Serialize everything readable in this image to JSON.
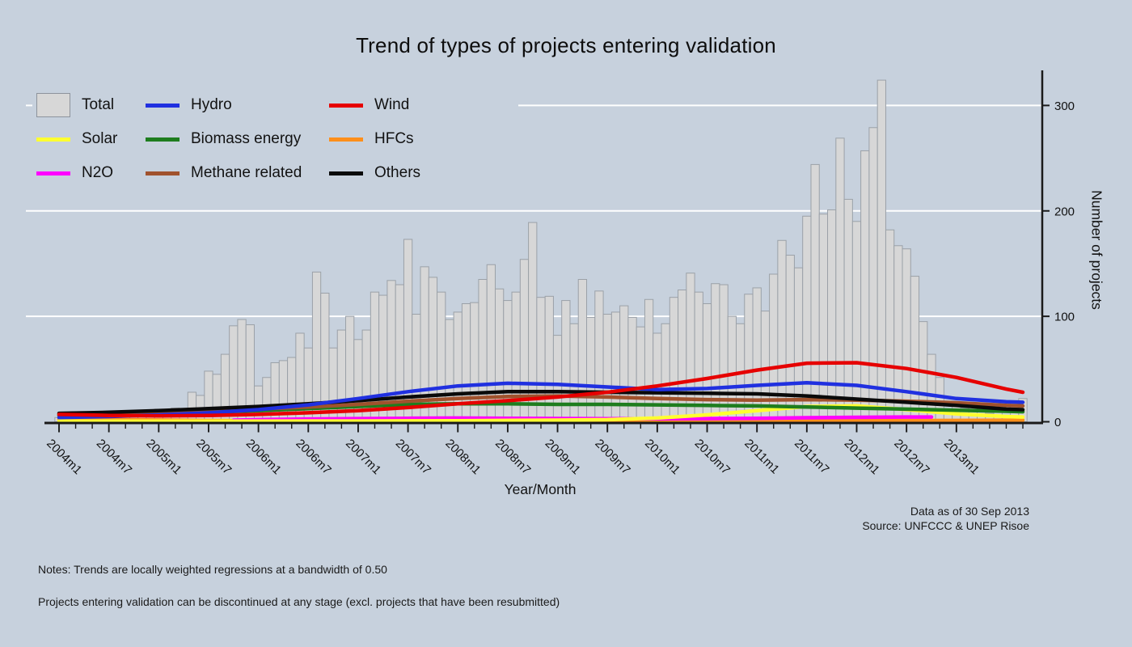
{
  "title": "Trend of types of projects entering validation",
  "background_color": "#c7d1dd",
  "legend": {
    "items": [
      {
        "label": "Total",
        "swatch": "patch",
        "color": "#d7d7d7",
        "border": "#8d939c"
      },
      {
        "label": "Hydro",
        "swatch": "line",
        "color": "#2030e0"
      },
      {
        "label": "Wind",
        "swatch": "line",
        "color": "#e60000"
      },
      {
        "label": "Solar",
        "swatch": "line",
        "color": "#ffff30"
      },
      {
        "label": "Biomass energy",
        "swatch": "line",
        "color": "#1e7d1e"
      },
      {
        "label": "HFCs",
        "swatch": "line",
        "color": "#ff8f1a"
      },
      {
        "label": "N2O",
        "swatch": "line",
        "color": "#ff00ff"
      },
      {
        "label": "Methane related",
        "swatch": "line",
        "color": "#a0522d"
      },
      {
        "label": "Others",
        "swatch": "line",
        "color": "#0a0a0a"
      }
    ]
  },
  "annotations": {
    "data_as_of": "Data as of 30 Sep 2013",
    "source": "Source: UNFCCC & UNEP Risoe"
  },
  "notes": [
    "Notes: Trends are locally weighted regressions at a bandwidth of 0.50",
    "Projects entering validation can be discontinued at any stage (excl. projects that have been resubmitted)"
  ],
  "chart_data": {
    "type": "bar",
    "title": "Trend of types of projects entering validation",
    "xlabel": "Year/Month",
    "ylabel": "Number of projects",
    "x_start": "2004m1",
    "x_end": "2013m9",
    "x_frequency": "monthly",
    "x_tick_labels": [
      "2004m1",
      "2004m7",
      "2005m1",
      "2005m7",
      "2006m1",
      "2006m7",
      "2007m1",
      "2007m7",
      "2008m1",
      "2008m7",
      "2009m1",
      "2009m7",
      "2010m1",
      "2010m7",
      "2011m1",
      "2011m7",
      "2012m1",
      "2012m7",
      "2013m1"
    ],
    "minor_tick_every_months": 2,
    "y_ticks": [
      0,
      100,
      200,
      300
    ],
    "y_tick_labels": [
      "0",
      "100",
      "200",
      "300"
    ],
    "ylim": [
      0,
      332
    ],
    "grid": "horizontal-white-lines",
    "legend_position": "top-left-inside",
    "total": {
      "name": "Total",
      "color": "#d7d7d7",
      "border": "#9ba1a8",
      "values": [
        4,
        5,
        3,
        5,
        4,
        5,
        7,
        6,
        8,
        10,
        9,
        10,
        12,
        9,
        13,
        11,
        28,
        25,
        48,
        45,
        64,
        91,
        97,
        92,
        34,
        42,
        56,
        58,
        61,
        84,
        70,
        142,
        122,
        70,
        87,
        100,
        78,
        87,
        123,
        120,
        134,
        130,
        173,
        102,
        147,
        137,
        123,
        97,
        104,
        112,
        113,
        135,
        149,
        126,
        115,
        123,
        154,
        189,
        118,
        119,
        82,
        115,
        93,
        135,
        99,
        124,
        102,
        104,
        110,
        99,
        90,
        116,
        84,
        93,
        118,
        125,
        141,
        123,
        112,
        131,
        130,
        100,
        93,
        121,
        127,
        105,
        140,
        172,
        158,
        146,
        195,
        244,
        197,
        201,
        269,
        211,
        190,
        257,
        279,
        324,
        182,
        167,
        164,
        138,
        95,
        64,
        42,
        11,
        17,
        13,
        17,
        13,
        8,
        17,
        5,
        20,
        22
      ]
    },
    "trend_series": [
      {
        "id": "hfcs",
        "name": "HFCs",
        "color": "#ff8f1a",
        "points": [
          [
            0,
            2
          ],
          [
            6,
            2
          ],
          [
            12,
            1.6
          ],
          [
            18,
            1.2
          ],
          [
            24,
            1
          ],
          [
            30,
            0.9
          ],
          [
            36,
            0.8
          ],
          [
            48,
            0.8
          ],
          [
            60,
            0.8
          ],
          [
            72,
            0.9
          ],
          [
            84,
            1
          ],
          [
            96,
            1
          ],
          [
            108,
            1.2
          ],
          [
            116,
            1.5
          ]
        ]
      },
      {
        "id": "n2o",
        "name": "N2O",
        "color": "#ff00ff",
        "points": [
          [
            21,
            1.5
          ],
          [
            24,
            2
          ],
          [
            30,
            2.6
          ],
          [
            36,
            3
          ],
          [
            42,
            3.3
          ],
          [
            48,
            3.5
          ],
          [
            54,
            3.3
          ],
          [
            60,
            3.1
          ],
          [
            66,
            2.9
          ],
          [
            72,
            2.9
          ],
          [
            78,
            3
          ],
          [
            84,
            3.3
          ],
          [
            90,
            3.8
          ],
          [
            96,
            4.2
          ],
          [
            102,
            4.5
          ],
          [
            105,
            4.5
          ]
        ]
      },
      {
        "id": "solar",
        "name": "Solar",
        "color": "#ffff30",
        "points": [
          [
            0,
            0.6
          ],
          [
            12,
            0.6
          ],
          [
            24,
            0.6
          ],
          [
            36,
            0.7
          ],
          [
            48,
            1
          ],
          [
            60,
            1.5
          ],
          [
            66,
            2
          ],
          [
            72,
            3.5
          ],
          [
            78,
            6.5
          ],
          [
            84,
            10.5
          ],
          [
            90,
            14.5
          ],
          [
            96,
            15
          ],
          [
            102,
            11.5
          ],
          [
            108,
            7.5
          ],
          [
            114,
            5
          ],
          [
            116,
            4.5
          ]
        ]
      },
      {
        "id": "biomass",
        "name": "Biomass energy",
        "color": "#1e7d1e",
        "points": [
          [
            0,
            6
          ],
          [
            6,
            6.5
          ],
          [
            12,
            7.5
          ],
          [
            18,
            9
          ],
          [
            24,
            10.5
          ],
          [
            30,
            12.5
          ],
          [
            36,
            14.5
          ],
          [
            42,
            16.5
          ],
          [
            48,
            17
          ],
          [
            54,
            17
          ],
          [
            60,
            16.5
          ],
          [
            66,
            16.5
          ],
          [
            72,
            16
          ],
          [
            78,
            15.5
          ],
          [
            84,
            15
          ],
          [
            90,
            14
          ],
          [
            96,
            13
          ],
          [
            102,
            12
          ],
          [
            108,
            11
          ],
          [
            114,
            10
          ],
          [
            116,
            9.5
          ]
        ]
      },
      {
        "id": "methane",
        "name": "Methane related",
        "color": "#a0522d",
        "points": [
          [
            0,
            6.5
          ],
          [
            6,
            7.5
          ],
          [
            12,
            8.5
          ],
          [
            18,
            10
          ],
          [
            24,
            12
          ],
          [
            30,
            14
          ],
          [
            36,
            16.5
          ],
          [
            42,
            19.5
          ],
          [
            48,
            22
          ],
          [
            54,
            24
          ],
          [
            60,
            24.5
          ],
          [
            66,
            23.5
          ],
          [
            72,
            22
          ],
          [
            78,
            21
          ],
          [
            84,
            20.5
          ],
          [
            90,
            21
          ],
          [
            96,
            20.5
          ],
          [
            102,
            19.5
          ],
          [
            108,
            18
          ],
          [
            114,
            15.5
          ],
          [
            116,
            15
          ]
        ]
      },
      {
        "id": "others",
        "name": "Others",
        "color": "#0a0a0a",
        "points": [
          [
            0,
            8
          ],
          [
            6,
            9
          ],
          [
            12,
            10.5
          ],
          [
            18,
            12.5
          ],
          [
            24,
            14.5
          ],
          [
            30,
            17
          ],
          [
            36,
            20
          ],
          [
            42,
            23.5
          ],
          [
            48,
            26.5
          ],
          [
            54,
            28.5
          ],
          [
            60,
            28.5
          ],
          [
            66,
            28
          ],
          [
            72,
            27.5
          ],
          [
            78,
            27
          ],
          [
            84,
            26.5
          ],
          [
            90,
            24.5
          ],
          [
            96,
            21.5
          ],
          [
            102,
            18.5
          ],
          [
            108,
            15.5
          ],
          [
            114,
            12
          ],
          [
            116,
            11.5
          ]
        ]
      },
      {
        "id": "hydro",
        "name": "Hydro",
        "color": "#2030e0",
        "points": [
          [
            0,
            4
          ],
          [
            6,
            5
          ],
          [
            12,
            6.5
          ],
          [
            18,
            8.5
          ],
          [
            24,
            11.5
          ],
          [
            30,
            16
          ],
          [
            36,
            22
          ],
          [
            42,
            28.5
          ],
          [
            48,
            34
          ],
          [
            54,
            36.5
          ],
          [
            60,
            35.5
          ],
          [
            66,
            33
          ],
          [
            72,
            30.5
          ],
          [
            78,
            31.5
          ],
          [
            84,
            34.5
          ],
          [
            90,
            37
          ],
          [
            96,
            34.5
          ],
          [
            102,
            28.5
          ],
          [
            108,
            22
          ],
          [
            114,
            19
          ],
          [
            116,
            18.5
          ]
        ]
      },
      {
        "id": "wind",
        "name": "Wind",
        "color": "#e60000",
        "points": [
          [
            0,
            7
          ],
          [
            6,
            6
          ],
          [
            12,
            5.5
          ],
          [
            18,
            6
          ],
          [
            24,
            7
          ],
          [
            30,
            8.5
          ],
          [
            36,
            10.5
          ],
          [
            42,
            13.5
          ],
          [
            48,
            17
          ],
          [
            54,
            20
          ],
          [
            60,
            23.5
          ],
          [
            66,
            28
          ],
          [
            72,
            34
          ],
          [
            78,
            41
          ],
          [
            84,
            49
          ],
          [
            90,
            55.5
          ],
          [
            96,
            56
          ],
          [
            102,
            50.5
          ],
          [
            108,
            42
          ],
          [
            114,
            31
          ],
          [
            116,
            28
          ]
        ]
      }
    ]
  }
}
